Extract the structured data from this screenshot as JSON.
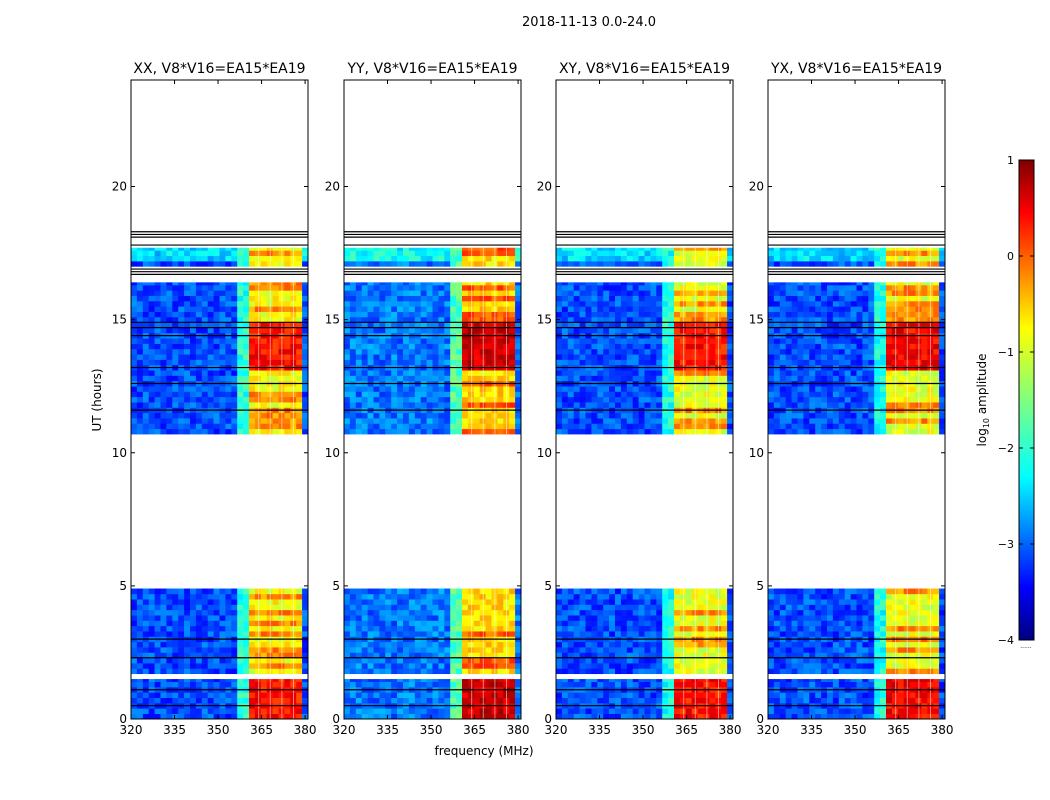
{
  "figure": {
    "suptitle": "2018-11-13 0.0-24.0",
    "xlabel": "frequency (MHz)",
    "ylabel": "UT (hours)",
    "colorbar_label": "log",
    "colorbar_label_sub": "10",
    "colorbar_label_rest": " amplitude",
    "colorbar_dots": "......"
  },
  "colors": {
    "background": "#ffffff",
    "axes": "#000000",
    "flag_line": "#000000",
    "colormap": "jet"
  },
  "chart_data": {
    "type": "heatmap",
    "xlim": [
      320,
      381
    ],
    "ylim": [
      0,
      24
    ],
    "xticks": [
      320,
      335,
      350,
      365,
      380
    ],
    "xtick_labels": [
      "320",
      "335",
      "350",
      "365",
      "380"
    ],
    "yticks": [
      0,
      5,
      10,
      15,
      20
    ],
    "ytick_labels": [
      "0",
      "5",
      "10",
      "15",
      "20"
    ],
    "colorbar": {
      "range": [
        -4,
        1
      ],
      "ticks": [
        1,
        0,
        -1,
        -2,
        -3,
        -4
      ],
      "tick_labels": [
        "1",
        "0",
        "−1",
        "−2",
        "−3",
        "−4"
      ]
    },
    "data_ranges_hours": [
      [
        0,
        1.5
      ],
      [
        1.7,
        4.9
      ],
      [
        10.7,
        16.4
      ],
      [
        17.0,
        17.7
      ]
    ],
    "flag_lines_hours": [
      18.1,
      18.2,
      18.3,
      17.8,
      16.9,
      16.8,
      16.7,
      14.9,
      14.7,
      14.4,
      13.2,
      12.6,
      11.6,
      3.0,
      2.3,
      1.1,
      0.5
    ],
    "band_mhz": [
      360,
      378
    ],
    "band_column_lines_mhz": [
      364,
      368,
      372,
      376
    ],
    "panels": [
      {
        "title": "XX, V8*V16=EA15*EA19",
        "baseline_level": -3.0,
        "band_level": -0.9,
        "peak_level": 0.3
      },
      {
        "title": "YY, V8*V16=EA15*EA19",
        "baseline_level": -2.8,
        "band_level": -0.7,
        "peak_level": 0.6
      },
      {
        "title": "XY, V8*V16=EA15*EA19",
        "baseline_level": -3.0,
        "band_level": -1.0,
        "peak_level": 0.3
      },
      {
        "title": "YX, V8*V16=EA15*EA19",
        "baseline_level": -3.0,
        "band_level": -1.0,
        "peak_level": 0.4
      }
    ]
  }
}
